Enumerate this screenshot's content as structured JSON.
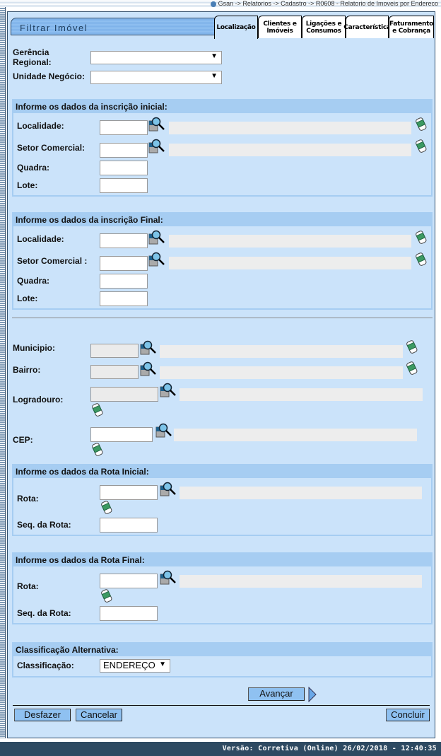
{
  "breadcrumb": "Gsan -> Relatorios -> Cadastro -> R0608 - Relatorio de Imoveis por Endereco",
  "title": "Filtrar Imóvel",
  "tabs": [
    {
      "label": "Localização",
      "active": true
    },
    {
      "label": "Clientes e Imóveis"
    },
    {
      "label": "Ligações e Consumos"
    },
    {
      "label": "Característica"
    },
    {
      "label": "Faturamento e Cobrança"
    }
  ],
  "filters": {
    "gerencia_label": "Gerência Regional:",
    "gerencia_value": "",
    "unidade_label": "Unidade Negócio:",
    "unidade_value": ""
  },
  "inscricao_inicial": {
    "header": "Informe os dados da inscrição inicial:",
    "localidade": "Localidade:",
    "setor": "Setor Comercial:",
    "quadra": "Quadra:",
    "lote": "Lote:"
  },
  "inscricao_final": {
    "header": "Informe os dados da inscrição Final:",
    "localidade": "Localidade:",
    "setor": "Setor Comercial :",
    "quadra": "Quadra:",
    "lote": "Lote:"
  },
  "endereco": {
    "municipio": "Municipio:",
    "bairro": "Bairro:",
    "logradouro": "Logradouro:",
    "cep": "CEP:"
  },
  "rota_inicial": {
    "header": "Informe os dados da Rota Inicial:",
    "rota": "Rota:",
    "seq": "Seq. da Rota:"
  },
  "rota_final": {
    "header": "Informe os dados da Rota Final:",
    "rota": "Rota:",
    "seq": "Seq. da Rota:"
  },
  "classificacao": {
    "header": "Classificação Alternativa:",
    "label": "Classificação:",
    "value": "ENDEREÇO"
  },
  "buttons": {
    "avancar": "Avançar",
    "desfazer": "Desfazer",
    "cancelar": "Cancelar",
    "concluir": "Concluir"
  },
  "footer": "Versão: Corretiva (Online) 26/02/2018 - 12:40:35",
  "colors": {
    "background": "#cbe3fa",
    "section_header": "#a6cdf2",
    "button": "#8fc1f1",
    "footer": "#2e4a62"
  },
  "icons": [
    "help-icon",
    "lookup-magnifier-icon",
    "eraser-icon",
    "next-arrow-icon"
  ]
}
